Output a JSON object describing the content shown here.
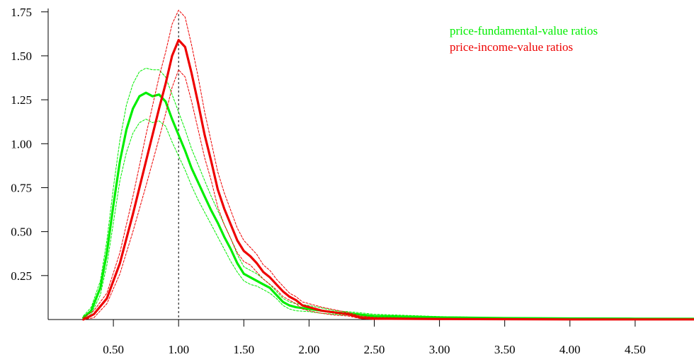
{
  "chart_data": {
    "type": "line",
    "title": "",
    "xlabel": "",
    "ylabel": "",
    "xlim": [
      0.0,
      4.95
    ],
    "ylim": [
      0.0,
      1.8
    ],
    "x_ticks": [
      {
        "value": 0.5,
        "label": "0.50"
      },
      {
        "value": 1.0,
        "label": "1.00"
      },
      {
        "value": 1.5,
        "label": "1.50"
      },
      {
        "value": 2.0,
        "label": "2.00"
      },
      {
        "value": 2.5,
        "label": "2.50"
      },
      {
        "value": 3.0,
        "label": "3.00"
      },
      {
        "value": 3.5,
        "label": "3.50"
      },
      {
        "value": 4.0,
        "label": "4.00"
      },
      {
        "value": 4.5,
        "label": "4.50"
      }
    ],
    "y_ticks": [
      {
        "value": 0.25,
        "label": "0.25"
      },
      {
        "value": 0.5,
        "label": "0.50"
      },
      {
        "value": 0.75,
        "label": "0.75"
      },
      {
        "value": 1.0,
        "label": "1.00"
      },
      {
        "value": 1.25,
        "label": "1.25"
      },
      {
        "value": 1.5,
        "label": "1.50"
      },
      {
        "value": 1.75,
        "label": "1.75"
      }
    ],
    "reference_line_x": 1.0,
    "grid": false,
    "legend_position": "top-right",
    "series": [
      {
        "name": "price-fundamental-value ratios",
        "color": "#00ee00",
        "style": "solid",
        "points": [
          [
            0.27,
            0.01
          ],
          [
            0.33,
            0.05
          ],
          [
            0.4,
            0.18
          ],
          [
            0.45,
            0.38
          ],
          [
            0.5,
            0.65
          ],
          [
            0.55,
            0.9
          ],
          [
            0.6,
            1.08
          ],
          [
            0.65,
            1.2
          ],
          [
            0.7,
            1.27
          ],
          [
            0.75,
            1.29
          ],
          [
            0.8,
            1.27
          ],
          [
            0.85,
            1.28
          ],
          [
            0.9,
            1.24
          ],
          [
            0.95,
            1.14
          ],
          [
            1.0,
            1.05
          ],
          [
            1.05,
            0.96
          ],
          [
            1.1,
            0.86
          ],
          [
            1.15,
            0.78
          ],
          [
            1.2,
            0.7
          ],
          [
            1.25,
            0.62
          ],
          [
            1.3,
            0.55
          ],
          [
            1.35,
            0.47
          ],
          [
            1.4,
            0.4
          ],
          [
            1.45,
            0.32
          ],
          [
            1.5,
            0.26
          ],
          [
            1.55,
            0.24
          ],
          [
            1.6,
            0.22
          ],
          [
            1.65,
            0.2
          ],
          [
            1.7,
            0.18
          ],
          [
            1.75,
            0.14
          ],
          [
            1.8,
            0.1
          ],
          [
            1.85,
            0.08
          ],
          [
            1.9,
            0.07
          ],
          [
            2.0,
            0.06
          ],
          [
            2.1,
            0.05
          ],
          [
            2.2,
            0.04
          ],
          [
            2.3,
            0.035
          ],
          [
            2.5,
            0.02
          ],
          [
            3.0,
            0.012
          ],
          [
            3.5,
            0.008
          ],
          [
            4.0,
            0.006
          ],
          [
            4.5,
            0.005
          ],
          [
            4.95,
            0.004
          ]
        ]
      },
      {
        "name": "",
        "color": "#00ee00",
        "style": "dashed",
        "points": [
          [
            0.27,
            0.02
          ],
          [
            0.33,
            0.07
          ],
          [
            0.4,
            0.22
          ],
          [
            0.45,
            0.45
          ],
          [
            0.5,
            0.75
          ],
          [
            0.55,
            1.02
          ],
          [
            0.6,
            1.22
          ],
          [
            0.65,
            1.34
          ],
          [
            0.7,
            1.41
          ],
          [
            0.75,
            1.43
          ],
          [
            0.8,
            1.42
          ],
          [
            0.85,
            1.42
          ],
          [
            0.9,
            1.38
          ],
          [
            0.95,
            1.28
          ],
          [
            1.0,
            1.18
          ],
          [
            1.05,
            1.08
          ],
          [
            1.1,
            0.97
          ],
          [
            1.15,
            0.88
          ],
          [
            1.2,
            0.79
          ],
          [
            1.25,
            0.7
          ],
          [
            1.3,
            0.62
          ],
          [
            1.35,
            0.54
          ],
          [
            1.4,
            0.46
          ],
          [
            1.45,
            0.37
          ],
          [
            1.5,
            0.3
          ],
          [
            1.55,
            0.28
          ],
          [
            1.6,
            0.26
          ],
          [
            1.65,
            0.23
          ],
          [
            1.7,
            0.2
          ],
          [
            1.75,
            0.16
          ],
          [
            1.8,
            0.12
          ],
          [
            1.85,
            0.1
          ],
          [
            1.9,
            0.09
          ],
          [
            2.0,
            0.08
          ],
          [
            2.1,
            0.065
          ],
          [
            2.2,
            0.05
          ],
          [
            2.3,
            0.045
          ],
          [
            2.5,
            0.03
          ],
          [
            3.0,
            0.017
          ],
          [
            3.5,
            0.011
          ],
          [
            4.0,
            0.008
          ],
          [
            4.5,
            0.007
          ],
          [
            4.95,
            0.006
          ]
        ]
      },
      {
        "name": "",
        "color": "#00ee00",
        "style": "dashed",
        "points": [
          [
            0.27,
            0.0
          ],
          [
            0.33,
            0.03
          ],
          [
            0.4,
            0.14
          ],
          [
            0.45,
            0.31
          ],
          [
            0.5,
            0.55
          ],
          [
            0.55,
            0.79
          ],
          [
            0.6,
            0.95
          ],
          [
            0.65,
            1.06
          ],
          [
            0.7,
            1.12
          ],
          [
            0.75,
            1.14
          ],
          [
            0.8,
            1.12
          ],
          [
            0.85,
            1.13
          ],
          [
            0.9,
            1.1
          ],
          [
            0.95,
            1.01
          ],
          [
            1.0,
            0.93
          ],
          [
            1.05,
            0.85
          ],
          [
            1.1,
            0.76
          ],
          [
            1.15,
            0.68
          ],
          [
            1.2,
            0.61
          ],
          [
            1.25,
            0.54
          ],
          [
            1.3,
            0.47
          ],
          [
            1.35,
            0.4
          ],
          [
            1.4,
            0.33
          ],
          [
            1.45,
            0.27
          ],
          [
            1.5,
            0.22
          ],
          [
            1.55,
            0.2
          ],
          [
            1.6,
            0.19
          ],
          [
            1.65,
            0.17
          ],
          [
            1.7,
            0.15
          ],
          [
            1.75,
            0.12
          ],
          [
            1.8,
            0.08
          ],
          [
            1.85,
            0.06
          ],
          [
            1.9,
            0.05
          ],
          [
            2.0,
            0.045
          ],
          [
            2.1,
            0.035
          ],
          [
            2.2,
            0.03
          ],
          [
            2.3,
            0.025
          ],
          [
            2.5,
            0.012
          ],
          [
            3.0,
            0.007
          ],
          [
            3.5,
            0.005
          ],
          [
            4.0,
            0.004
          ],
          [
            4.5,
            0.003
          ],
          [
            4.95,
            0.002
          ]
        ]
      },
      {
        "name": "price-income-value ratios",
        "color": "#ee0000",
        "style": "solid",
        "points": [
          [
            0.27,
            0.0
          ],
          [
            0.35,
            0.03
          ],
          [
            0.45,
            0.12
          ],
          [
            0.55,
            0.32
          ],
          [
            0.65,
            0.6
          ],
          [
            0.75,
            0.9
          ],
          [
            0.85,
            1.2
          ],
          [
            0.9,
            1.34
          ],
          [
            0.95,
            1.5
          ],
          [
            1.0,
            1.59
          ],
          [
            1.05,
            1.55
          ],
          [
            1.1,
            1.4
          ],
          [
            1.15,
            1.23
          ],
          [
            1.2,
            1.05
          ],
          [
            1.25,
            0.9
          ],
          [
            1.3,
            0.74
          ],
          [
            1.35,
            0.63
          ],
          [
            1.4,
            0.54
          ],
          [
            1.45,
            0.45
          ],
          [
            1.5,
            0.39
          ],
          [
            1.55,
            0.36
          ],
          [
            1.6,
            0.32
          ],
          [
            1.65,
            0.27
          ],
          [
            1.7,
            0.24
          ],
          [
            1.75,
            0.2
          ],
          [
            1.8,
            0.16
          ],
          [
            1.85,
            0.13
          ],
          [
            1.9,
            0.11
          ],
          [
            1.95,
            0.08
          ],
          [
            2.0,
            0.07
          ],
          [
            2.1,
            0.05
          ],
          [
            2.2,
            0.04
          ],
          [
            2.3,
            0.03
          ],
          [
            2.4,
            0.01
          ],
          [
            2.5,
            0.005
          ],
          [
            3.0,
            0.003
          ],
          [
            3.5,
            0.002
          ],
          [
            4.0,
            0.001
          ],
          [
            4.5,
            0.001
          ],
          [
            4.95,
            0.001
          ]
        ]
      },
      {
        "name": "",
        "color": "#ee0000",
        "style": "dashed",
        "points": [
          [
            0.27,
            0.01
          ],
          [
            0.35,
            0.05
          ],
          [
            0.45,
            0.15
          ],
          [
            0.55,
            0.38
          ],
          [
            0.65,
            0.7
          ],
          [
            0.75,
            1.05
          ],
          [
            0.85,
            1.38
          ],
          [
            0.9,
            1.52
          ],
          [
            0.95,
            1.68
          ],
          [
            1.0,
            1.76
          ],
          [
            1.05,
            1.72
          ],
          [
            1.1,
            1.56
          ],
          [
            1.15,
            1.38
          ],
          [
            1.2,
            1.18
          ],
          [
            1.25,
            1.01
          ],
          [
            1.3,
            0.84
          ],
          [
            1.35,
            0.72
          ],
          [
            1.4,
            0.62
          ],
          [
            1.45,
            0.52
          ],
          [
            1.5,
            0.45
          ],
          [
            1.55,
            0.41
          ],
          [
            1.6,
            0.37
          ],
          [
            1.65,
            0.31
          ],
          [
            1.7,
            0.28
          ],
          [
            1.75,
            0.23
          ],
          [
            1.8,
            0.19
          ],
          [
            1.85,
            0.15
          ],
          [
            1.9,
            0.13
          ],
          [
            1.95,
            0.1
          ],
          [
            2.0,
            0.09
          ],
          [
            2.1,
            0.07
          ],
          [
            2.2,
            0.055
          ],
          [
            2.3,
            0.04
          ],
          [
            2.4,
            0.02
          ],
          [
            2.5,
            0.012
          ],
          [
            3.0,
            0.007
          ],
          [
            3.5,
            0.004
          ],
          [
            4.0,
            0.003
          ],
          [
            4.5,
            0.002
          ],
          [
            4.95,
            0.002
          ]
        ]
      },
      {
        "name": "",
        "color": "#ee0000",
        "style": "dashed",
        "points": [
          [
            0.27,
            0.0
          ],
          [
            0.35,
            0.01
          ],
          [
            0.45,
            0.09
          ],
          [
            0.55,
            0.26
          ],
          [
            0.65,
            0.5
          ],
          [
            0.75,
            0.76
          ],
          [
            0.85,
            1.03
          ],
          [
            0.9,
            1.17
          ],
          [
            0.95,
            1.32
          ],
          [
            1.0,
            1.42
          ],
          [
            1.05,
            1.38
          ],
          [
            1.1,
            1.24
          ],
          [
            1.15,
            1.08
          ],
          [
            1.2,
            0.92
          ],
          [
            1.25,
            0.79
          ],
          [
            1.3,
            0.64
          ],
          [
            1.35,
            0.54
          ],
          [
            1.4,
            0.46
          ],
          [
            1.45,
            0.38
          ],
          [
            1.5,
            0.33
          ],
          [
            1.55,
            0.31
          ],
          [
            1.6,
            0.27
          ],
          [
            1.65,
            0.23
          ],
          [
            1.7,
            0.2
          ],
          [
            1.75,
            0.17
          ],
          [
            1.8,
            0.13
          ],
          [
            1.85,
            0.11
          ],
          [
            1.9,
            0.09
          ],
          [
            1.95,
            0.06
          ],
          [
            2.0,
            0.05
          ],
          [
            2.1,
            0.035
          ],
          [
            2.2,
            0.025
          ],
          [
            2.3,
            0.02
          ],
          [
            2.4,
            0.005
          ],
          [
            2.5,
            0.0
          ],
          [
            3.0,
            0.0
          ],
          [
            3.5,
            0.0
          ],
          [
            4.0,
            0.0
          ],
          [
            4.5,
            0.0
          ],
          [
            4.95,
            0.0
          ]
        ]
      }
    ]
  }
}
